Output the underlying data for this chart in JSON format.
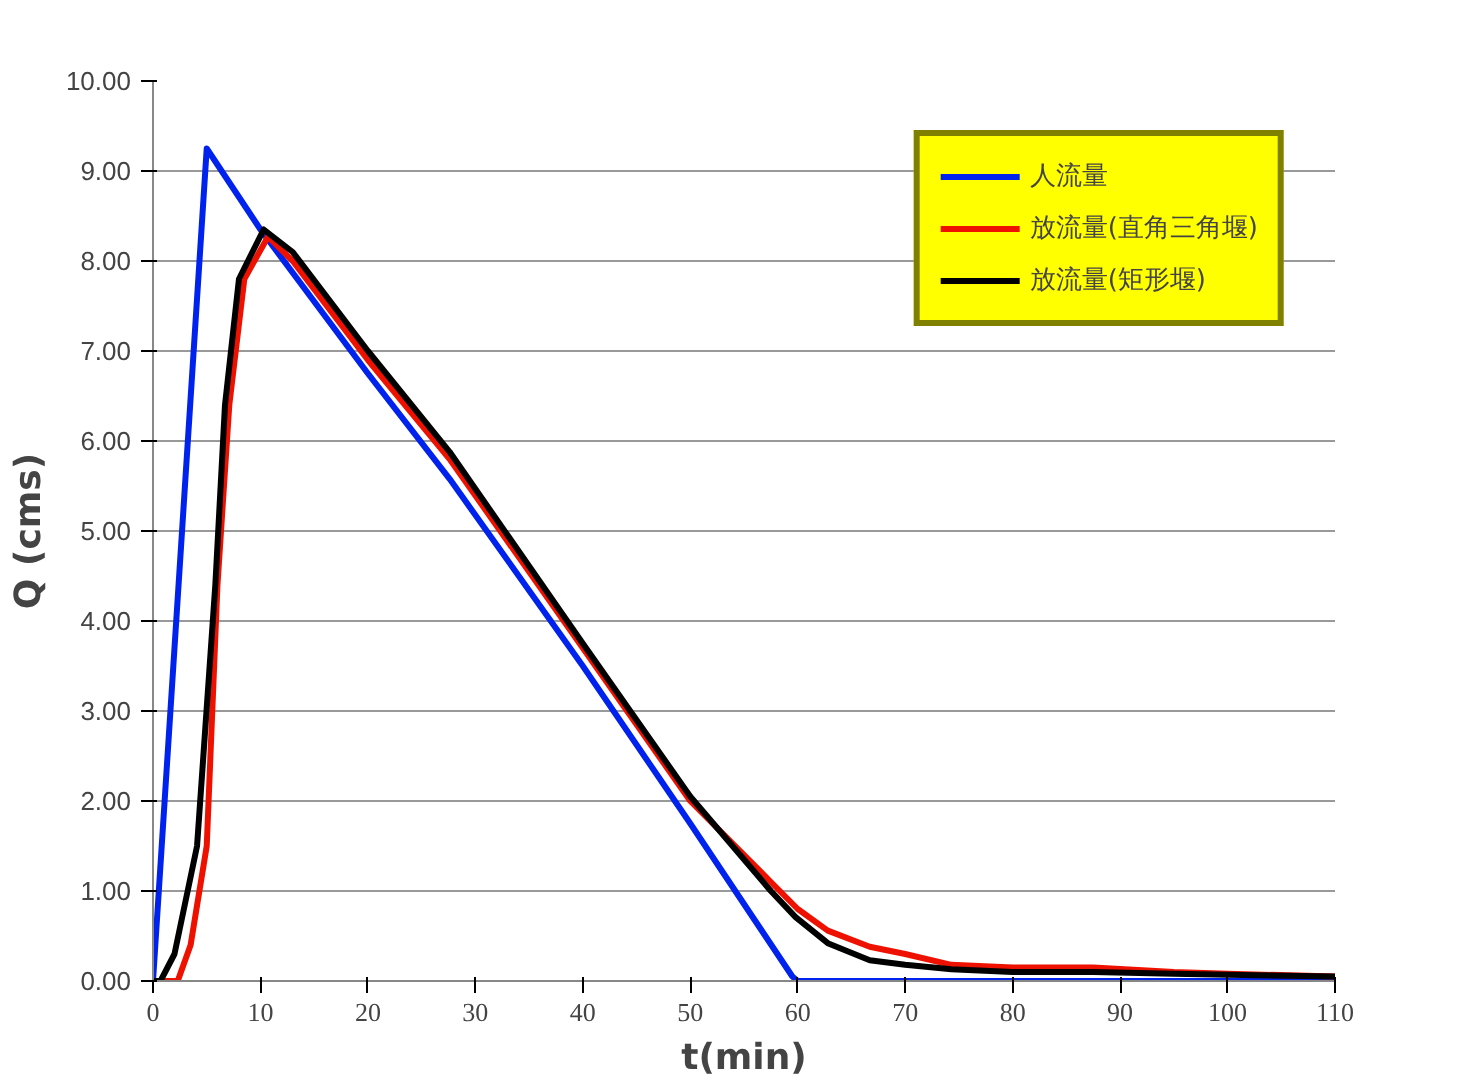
{
  "chart_data": {
    "type": "line",
    "xlabel": "t(min)",
    "ylabel": "Q (cms)",
    "xlim": [
      0,
      110
    ],
    "ylim": [
      0,
      10
    ],
    "xticks": [
      0,
      10,
      20,
      30,
      40,
      50,
      60,
      70,
      80,
      90,
      100,
      110
    ],
    "yticks": [
      {
        "value": 0,
        "label": "0.00"
      },
      {
        "value": 1,
        "label": "1.00"
      },
      {
        "value": 2,
        "label": "2.00"
      },
      {
        "value": 3,
        "label": "3.00"
      },
      {
        "value": 4,
        "label": "4.00"
      },
      {
        "value": 5,
        "label": "5.00"
      },
      {
        "value": 6,
        "label": "6.00"
      },
      {
        "value": 7,
        "label": "7.00"
      },
      {
        "value": 8,
        "label": "8.00"
      },
      {
        "value": 9,
        "label": "9.00"
      },
      {
        "value": 10,
        "label": "10.00"
      }
    ],
    "grid": "y",
    "legend": "top right",
    "marker": "none",
    "line_style": "solid",
    "series": [
      {
        "name": "人流量",
        "color": "#0022ee",
        "x": [
          0,
          5,
          10,
          20,
          27.6,
          40,
          50,
          59.5,
          60,
          70,
          80,
          90,
          100,
          110
        ],
        "values": [
          0,
          9.25,
          8.35,
          6.75,
          5.58,
          3.5,
          1.75,
          0.05,
          0,
          0,
          0,
          0,
          0,
          0
        ]
      },
      {
        "name": "放流量(直角三角堰)",
        "color": "#ee1100",
        "x": [
          0,
          2.3,
          3.5,
          5,
          6,
          7.1,
          8.5,
          10.7,
          13,
          20,
          27.6,
          40,
          50,
          57.5,
          60,
          62.8,
          66.7,
          70,
          74.3,
          80,
          87.5,
          95,
          100,
          110
        ],
        "values": [
          0,
          0,
          0.4,
          1.5,
          4.4,
          6.4,
          7.8,
          8.27,
          8.0,
          6.9,
          5.8,
          3.7,
          2.0,
          1.1,
          0.8,
          0.56,
          0.38,
          0.3,
          0.18,
          0.15,
          0.15,
          0.1,
          0.08,
          0.05
        ]
      },
      {
        "name": "放流量(矩形堰)",
        "color": "#000000",
        "x": [
          0,
          0.7,
          2,
          4.1,
          5.8,
          6.7,
          8,
          10.3,
          13,
          20,
          27.6,
          40,
          50,
          57.5,
          59.8,
          62.8,
          66.7,
          70,
          74.3,
          80,
          87.5,
          95,
          100,
          110
        ],
        "values": [
          0,
          0,
          0.3,
          1.5,
          4.4,
          6.4,
          7.8,
          8.35,
          8.1,
          7.0,
          5.88,
          3.75,
          2.05,
          1.0,
          0.71,
          0.42,
          0.23,
          0.18,
          0.13,
          0.1,
          0.1,
          0.08,
          0.07,
          0.05
        ]
      }
    ]
  }
}
